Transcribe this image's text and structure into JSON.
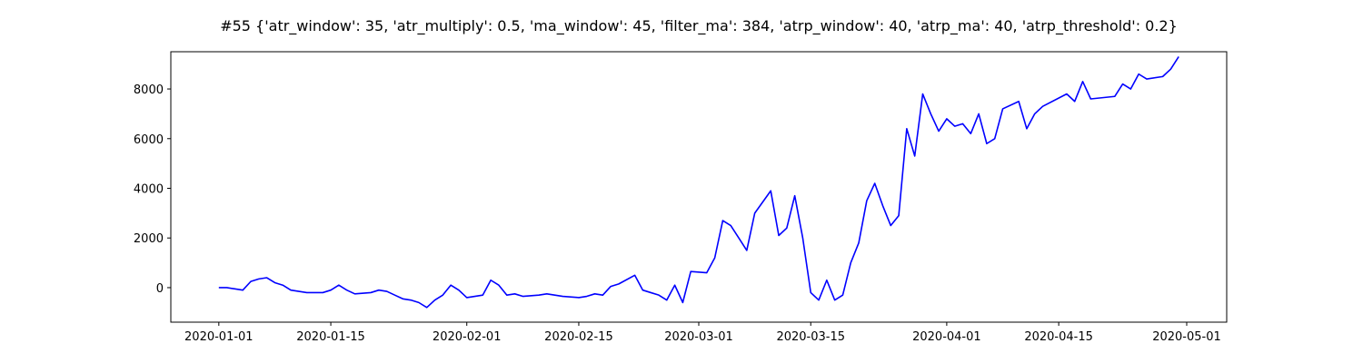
{
  "chart_data": {
    "type": "line",
    "title": "#55 {'atr_window': 35, 'atr_multiply': 0.5, 'ma_window': 45, 'filter_ma': 384, 'atrp_window': 40, 'atrp_ma': 40, 'atrp_threshold': 0.2}",
    "x": [
      "2020-01-01",
      "2020-01-02",
      "2020-01-03",
      "2020-01-04",
      "2020-01-05",
      "2020-01-06",
      "2020-01-07",
      "2020-01-08",
      "2020-01-09",
      "2020-01-10",
      "2020-01-11",
      "2020-01-12",
      "2020-01-14",
      "2020-01-15",
      "2020-01-16",
      "2020-01-17",
      "2020-01-18",
      "2020-01-20",
      "2020-01-21",
      "2020-01-22",
      "2020-01-23",
      "2020-01-24",
      "2020-01-25",
      "2020-01-26",
      "2020-01-27",
      "2020-01-28",
      "2020-01-29",
      "2020-01-30",
      "2020-01-31",
      "2020-02-01",
      "2020-02-03",
      "2020-02-04",
      "2020-02-05",
      "2020-02-06",
      "2020-02-07",
      "2020-02-08",
      "2020-02-10",
      "2020-02-11",
      "2020-02-12",
      "2020-02-13",
      "2020-02-15",
      "2020-02-16",
      "2020-02-17",
      "2020-02-18",
      "2020-02-19",
      "2020-02-20",
      "2020-02-22",
      "2020-02-23",
      "2020-02-24",
      "2020-02-25",
      "2020-02-26",
      "2020-02-27",
      "2020-02-28",
      "2020-02-29",
      "2020-03-02",
      "2020-03-03",
      "2020-03-04",
      "2020-03-05",
      "2020-03-06",
      "2020-03-07",
      "2020-03-08",
      "2020-03-10",
      "2020-03-11",
      "2020-03-12",
      "2020-03-13",
      "2020-03-14",
      "2020-03-15",
      "2020-03-16",
      "2020-03-17",
      "2020-03-18",
      "2020-03-19",
      "2020-03-20",
      "2020-03-21",
      "2020-03-22",
      "2020-03-23",
      "2020-03-24",
      "2020-03-25",
      "2020-03-26",
      "2020-03-27",
      "2020-03-28",
      "2020-03-29",
      "2020-03-30",
      "2020-03-31",
      "2020-04-01",
      "2020-04-02",
      "2020-04-03",
      "2020-04-04",
      "2020-04-05",
      "2020-04-06",
      "2020-04-07",
      "2020-04-08",
      "2020-04-10",
      "2020-04-11",
      "2020-04-12",
      "2020-04-13",
      "2020-04-16",
      "2020-04-17",
      "2020-04-18",
      "2020-04-19",
      "2020-04-22",
      "2020-04-23",
      "2020-04-24",
      "2020-04-25",
      "2020-04-26",
      "2020-04-28",
      "2020-04-29",
      "2020-04-30"
    ],
    "series": [
      {
        "color": "#0000ff",
        "values": [
          0,
          0,
          -50,
          -100,
          250,
          350,
          400,
          200,
          100,
          -100,
          -150,
          -200,
          -200,
          -100,
          100,
          -100,
          -250,
          -200,
          -100,
          -150,
          -300,
          -450,
          -500,
          -600,
          -800,
          -500,
          -300,
          100,
          -100,
          -400,
          -300,
          300,
          100,
          -300,
          -250,
          -350,
          -300,
          -250,
          -300,
          -350,
          -400,
          -350,
          -250,
          -300,
          50,
          150,
          500,
          -100,
          -200,
          -300,
          -500,
          100,
          -600,
          650,
          600,
          1200,
          2700,
          2500,
          2000,
          1500,
          3000,
          3900,
          2100,
          2400,
          3700,
          2000,
          -200,
          -500,
          300,
          -500,
          -300,
          1000,
          1800,
          3500,
          4200,
          3300,
          2500,
          2900,
          6400,
          5300,
          7800,
          7000,
          6300,
          6800,
          6500,
          6600,
          6200,
          7000,
          5800,
          6000,
          7200,
          7500,
          6400,
          7000,
          7300,
          7800,
          7500,
          8300,
          7600,
          7700,
          8200,
          8000,
          8600,
          8400,
          8500,
          8800,
          9300
        ]
      }
    ],
    "xlim": [
      "2019-12-26",
      "2020-05-06"
    ],
    "xticks": [
      "2020-01-01",
      "2020-01-15",
      "2020-02-01",
      "2020-02-15",
      "2020-03-01",
      "2020-03-15",
      "2020-04-01",
      "2020-04-15",
      "2020-05-01"
    ],
    "ylim": [
      -1390,
      9500
    ],
    "yticks": [
      0,
      2000,
      4000,
      6000,
      8000
    ]
  }
}
